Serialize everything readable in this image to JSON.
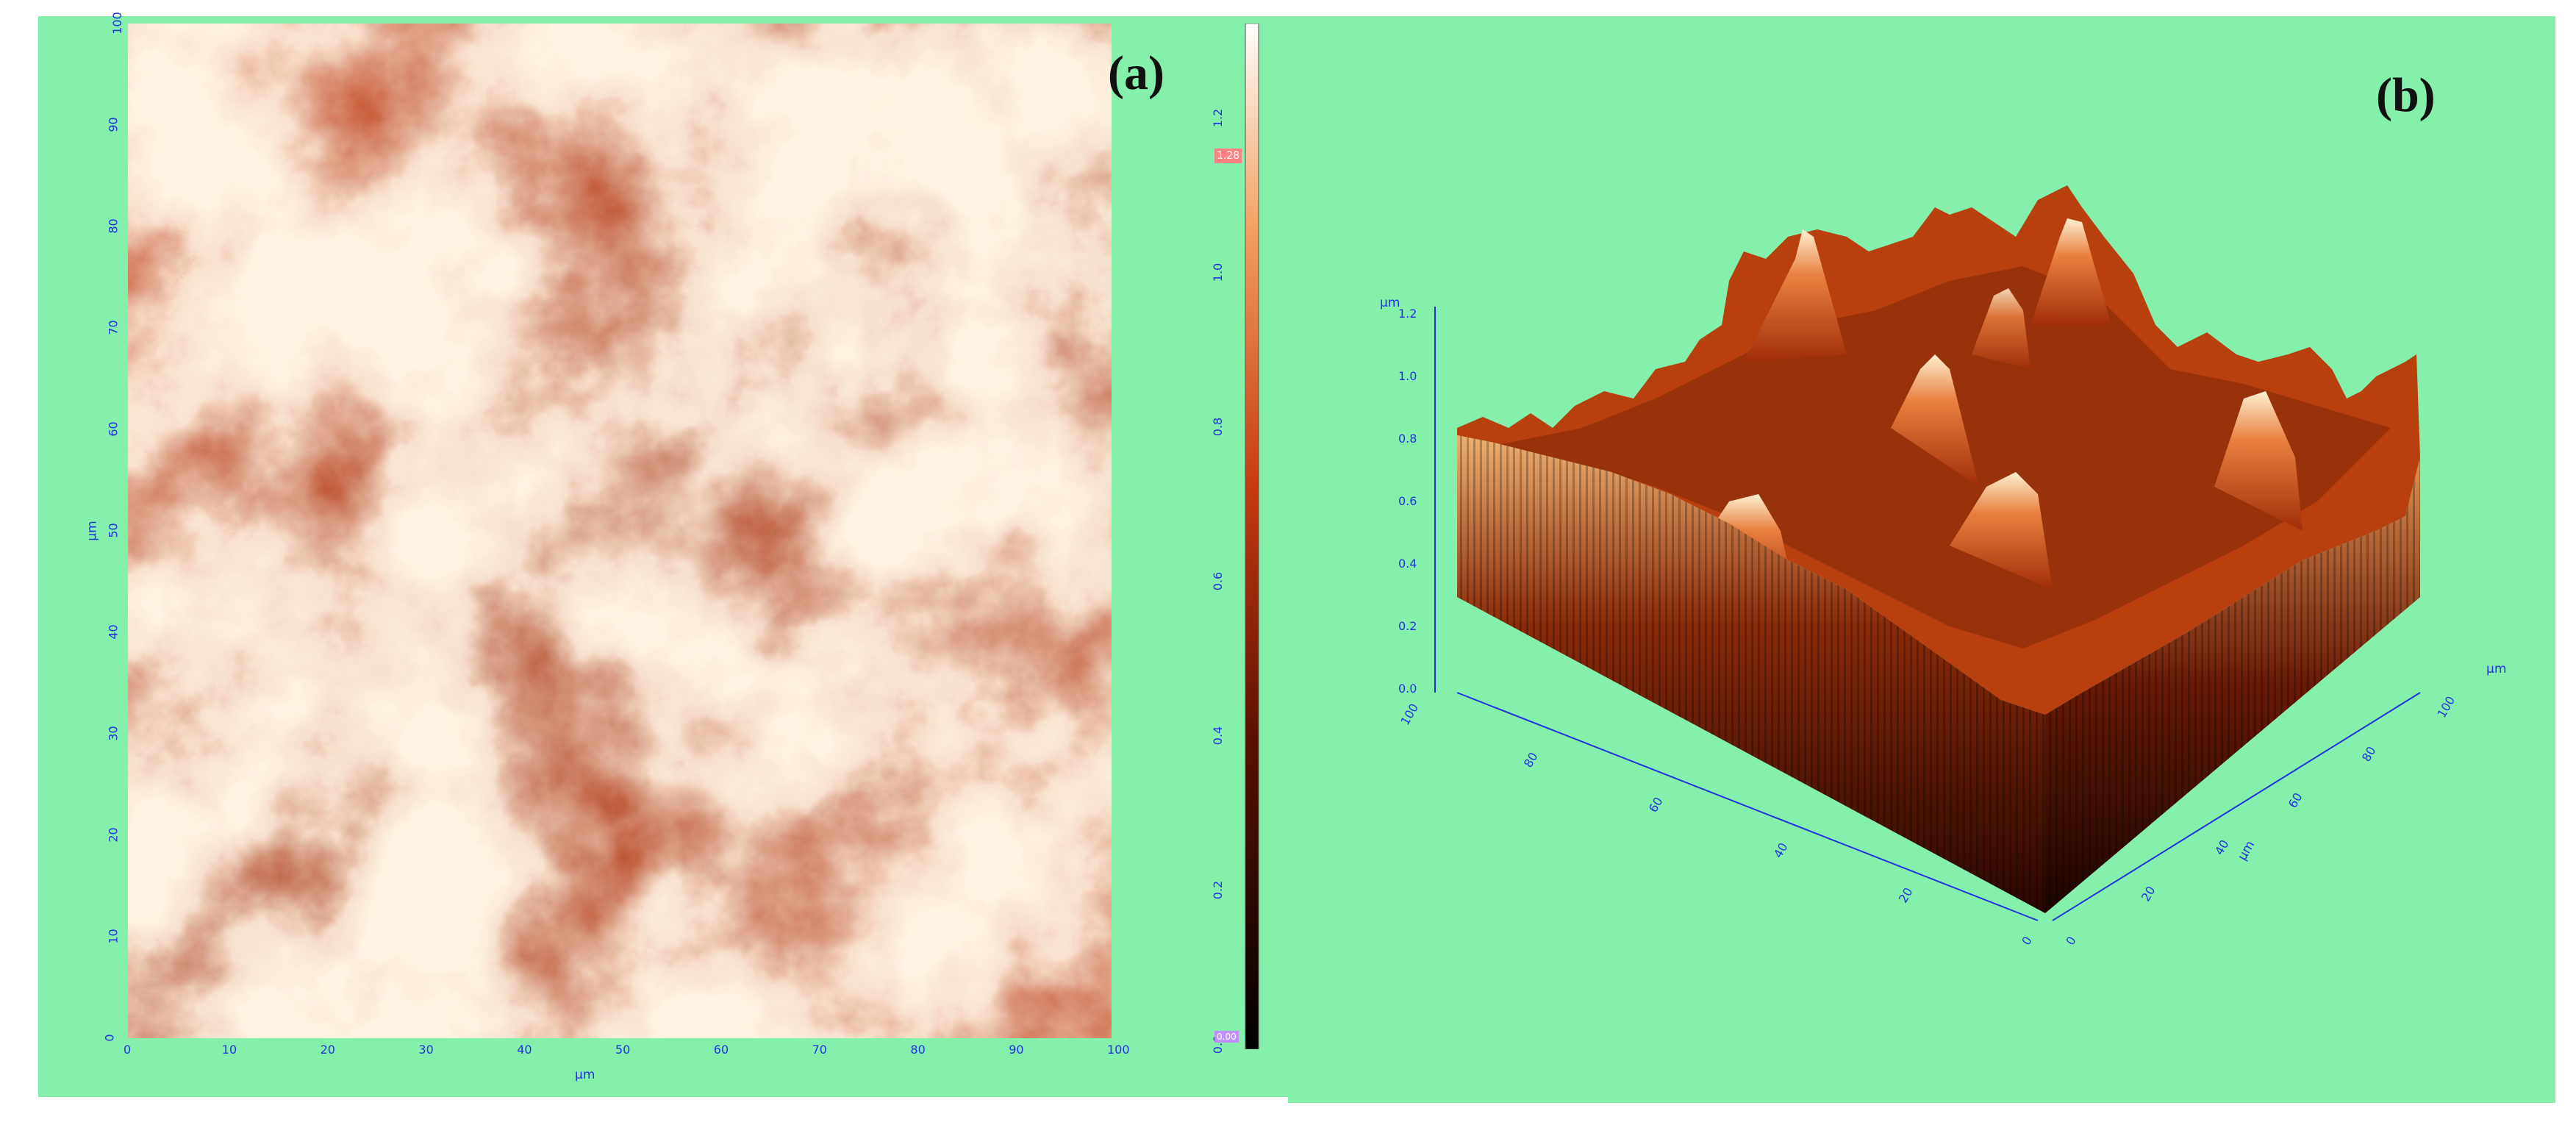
{
  "panel_a": {
    "label": "(a)",
    "x_ticks": [
      "0",
      "10",
      "20",
      "30",
      "40",
      "50",
      "60",
      "70",
      "80",
      "90",
      "100"
    ],
    "y_ticks": [
      "0",
      "10",
      "20",
      "30",
      "40",
      "50",
      "60",
      "70",
      "80",
      "90",
      "100"
    ],
    "x_unit": "µm",
    "y_unit": "µm",
    "colorbar": {
      "ticks": [
        "0.0",
        "0.2",
        "0.4",
        "0.6",
        "0.8",
        "1.0",
        "1.2"
      ],
      "unit": "µm",
      "min_badge": "0.00",
      "max_badge": "1.28"
    },
    "colors": {
      "dark": "#3a0800",
      "mid": "#c8401a",
      "light": "#fff4e4"
    }
  },
  "panel_b": {
    "label": "(b)",
    "z_unit": "µm",
    "z_ticks": [
      "0.0",
      "0.2",
      "0.4",
      "0.6",
      "0.8",
      "1.0",
      "1.2"
    ],
    "left_axis_ticks": [
      "0",
      "20",
      "40",
      "60",
      "80",
      "100"
    ],
    "right_axis_ticks": [
      "0",
      "20",
      "40",
      "60",
      "80",
      "100"
    ],
    "right_axis_unit": "µm",
    "right_axis_label": "µm"
  }
}
